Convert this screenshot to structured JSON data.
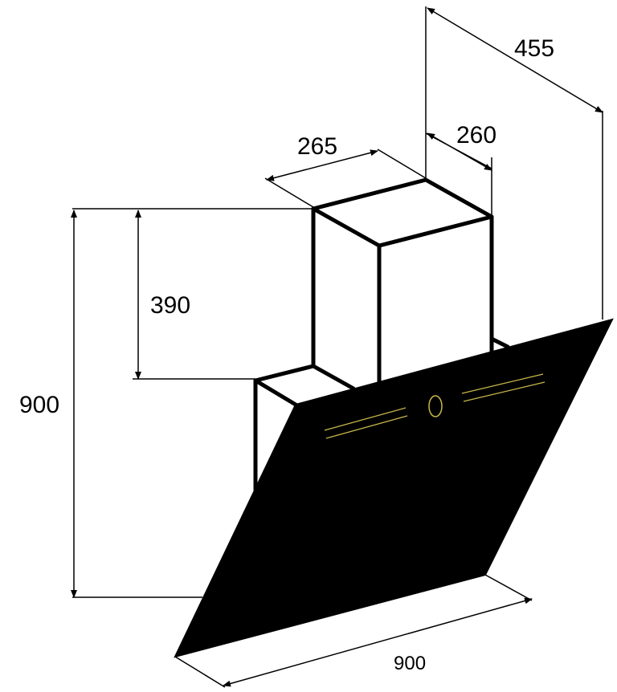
{
  "dimensions": {
    "depth_total": "455",
    "depth_chimney": "260",
    "width_chimney": "265",
    "height_chimney": "390",
    "height_total": "900",
    "width_hood": "900"
  },
  "colors": {
    "line": "#000000",
    "glass": "#000000",
    "background": "#ffffff",
    "control_accent": "#c8b84a"
  }
}
